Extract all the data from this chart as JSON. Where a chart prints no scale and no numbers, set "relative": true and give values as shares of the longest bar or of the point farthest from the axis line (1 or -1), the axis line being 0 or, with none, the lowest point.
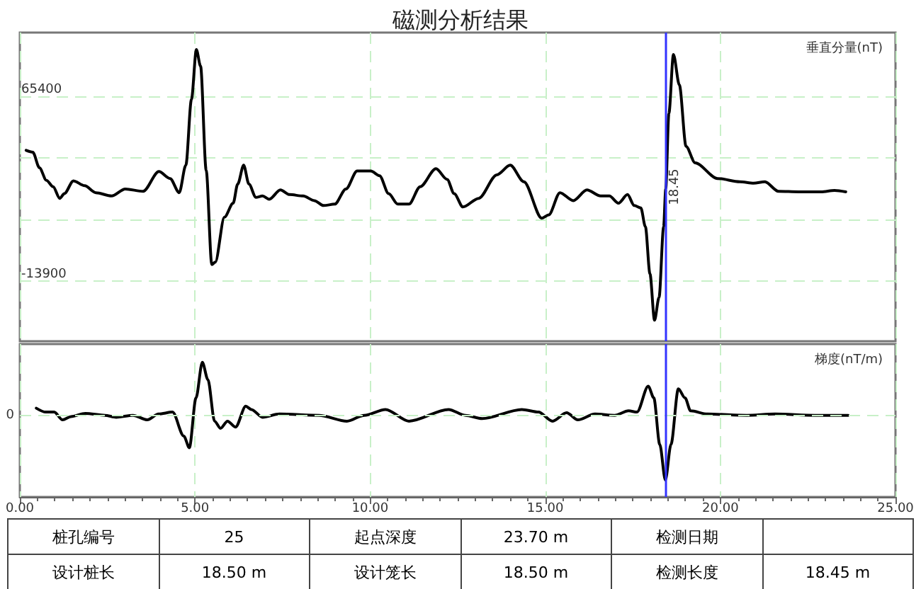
{
  "chart_data": [
    {
      "type": "line",
      "title": "磁测分析结果",
      "ylabel": "垂直分量(nT)",
      "xlim": [
        0,
        25
      ],
      "xticks": [
        0,
        5,
        10,
        15,
        20,
        25
      ],
      "ylim": [
        -39800,
        92600
      ],
      "yticks": [
        -13900,
        {
          "value": 12533,
          "label": null
        },
        {
          "value": 38967,
          "label": null
        },
        65400
      ],
      "grid": true,
      "tick_labels": "y",
      "line_style": "solid",
      "series": [
        {
          "color": "#000000",
          "x": [
            0.18,
            0.37,
            0.56,
            0.76,
            0.95,
            1.14,
            1.27,
            1.53,
            1.85,
            2.17,
            2.62,
            3.01,
            3.52,
            3.97,
            4.29,
            4.55,
            4.74,
            4.9,
            5.04,
            5.16,
            5.32,
            5.48,
            5.58,
            5.84,
            6.09,
            6.22,
            6.39,
            6.54,
            6.74,
            6.93,
            7.12,
            7.44,
            7.7,
            8.09,
            8.41,
            8.67,
            8.99,
            9.31,
            9.63,
            10.02,
            10.27,
            10.53,
            10.79,
            11.11,
            11.43,
            11.88,
            12.2,
            12.4,
            12.65,
            13.1,
            13.62,
            14.0,
            14.39,
            14.9,
            15.1,
            15.42,
            15.8,
            16.19,
            16.58,
            16.83,
            17.09,
            17.35,
            17.54,
            17.73,
            17.86,
            17.99,
            18.12,
            18.25,
            18.38,
            18.44,
            18.53,
            18.66,
            18.83,
            19.02,
            19.28,
            19.92,
            20.56,
            20.95,
            21.27,
            21.66,
            22.23,
            22.88,
            23.26,
            23.58
          ],
          "values": [
            42100,
            41300,
            34600,
            29200,
            26500,
            21500,
            23500,
            29000,
            26900,
            23900,
            22500,
            25500,
            24500,
            33000,
            30000,
            23900,
            35700,
            64000,
            85300,
            78200,
            33600,
            -6900,
            -5900,
            13400,
            19400,
            27600,
            35700,
            27600,
            21900,
            22500,
            21100,
            25100,
            23100,
            22500,
            20500,
            18400,
            19000,
            25500,
            33200,
            33200,
            31200,
            23500,
            19000,
            19000,
            26500,
            34200,
            29600,
            23500,
            17800,
            21500,
            31600,
            35700,
            28600,
            13000,
            14400,
            23900,
            20500,
            25100,
            22500,
            22500,
            19400,
            23100,
            18400,
            17400,
            9300,
            -10900,
            -30800,
            -21000,
            9300,
            25500,
            57900,
            83200,
            70100,
            43800,
            36700,
            30000,
            28600,
            28000,
            28600,
            24500,
            24300,
            24300,
            24900,
            24300
          ]
        }
      ],
      "ref_lines": [
        {
          "axis": "x",
          "value": 18.45,
          "label": "18.45",
          "color": "#3333ff"
        }
      ]
    },
    {
      "type": "line",
      "ylabel": "梯度(nT/m)",
      "xlim": [
        0,
        25
      ],
      "xticks": [
        {
          "value": 0,
          "label": "0.00"
        },
        {
          "value": 5,
          "label": "5.00"
        },
        {
          "value": 10,
          "label": "10.00"
        },
        {
          "value": 15,
          "label": "15.00"
        },
        {
          "value": 20,
          "label": "20.00"
        },
        {
          "value": 25,
          "label": "25.00"
        }
      ],
      "relative": true,
      "grid": "x",
      "tick_labels": "x",
      "line_style": "solid",
      "series": [
        {
          "color": "#000000",
          "x": [
            0.47,
            0.74,
            0.98,
            1.22,
            1.46,
            1.87,
            2.43,
            2.75,
            3.23,
            3.64,
            3.96,
            4.36,
            4.68,
            4.84,
            5.03,
            5.21,
            5.37,
            5.56,
            5.73,
            5.93,
            6.16,
            6.45,
            6.61,
            6.93,
            7.41,
            8.54,
            9.34,
            9.83,
            10.44,
            11.11,
            12.24,
            12.72,
            13.2,
            14.33,
            14.81,
            15.21,
            15.61,
            15.93,
            16.42,
            16.98,
            17.38,
            17.62,
            17.94,
            18.1,
            18.27,
            18.43,
            18.59,
            18.8,
            18.99,
            19.15,
            19.63,
            20.76,
            21.56,
            22.69,
            23.65
          ],
          "values": [
            0.11,
            0.05,
            0.05,
            -0.07,
            -0.02,
            0.03,
            0,
            -0.03,
            0,
            -0.07,
            0.02,
            0.05,
            -0.32,
            -0.5,
            0.27,
            0.82,
            0.55,
            -0.09,
            -0.2,
            -0.09,
            -0.18,
            0.14,
            0.09,
            -0.03,
            0.02,
            0,
            -0.09,
            0,
            0.09,
            -0.09,
            0.09,
            0,
            -0.05,
            0.09,
            0.05,
            -0.09,
            0.04,
            -0.07,
            0.02,
            0,
            0.07,
            0.05,
            0.45,
            0.27,
            -0.45,
            -1,
            -0.45,
            0.41,
            0.27,
            0.07,
            0.02,
            0,
            0.02,
            0,
            0
          ]
        }
      ],
      "ref_lines": [
        {
          "axis": "y",
          "value": 0,
          "label": "0",
          "color": "#c8f0c8",
          "line_style": "dashed"
        },
        {
          "axis": "x",
          "value": 18.45,
          "color": "#3333ff"
        }
      ]
    },
    {
      "type": "other",
      "annotations": [
        "桩孔编号",
        "25",
        "起点深度",
        "23.70 m",
        "检测日期",
        null,
        "设计桩长",
        "18.50 m",
        "设计笼长",
        "18.50 m",
        "检测长度",
        "18.45 m"
      ]
    }
  ]
}
